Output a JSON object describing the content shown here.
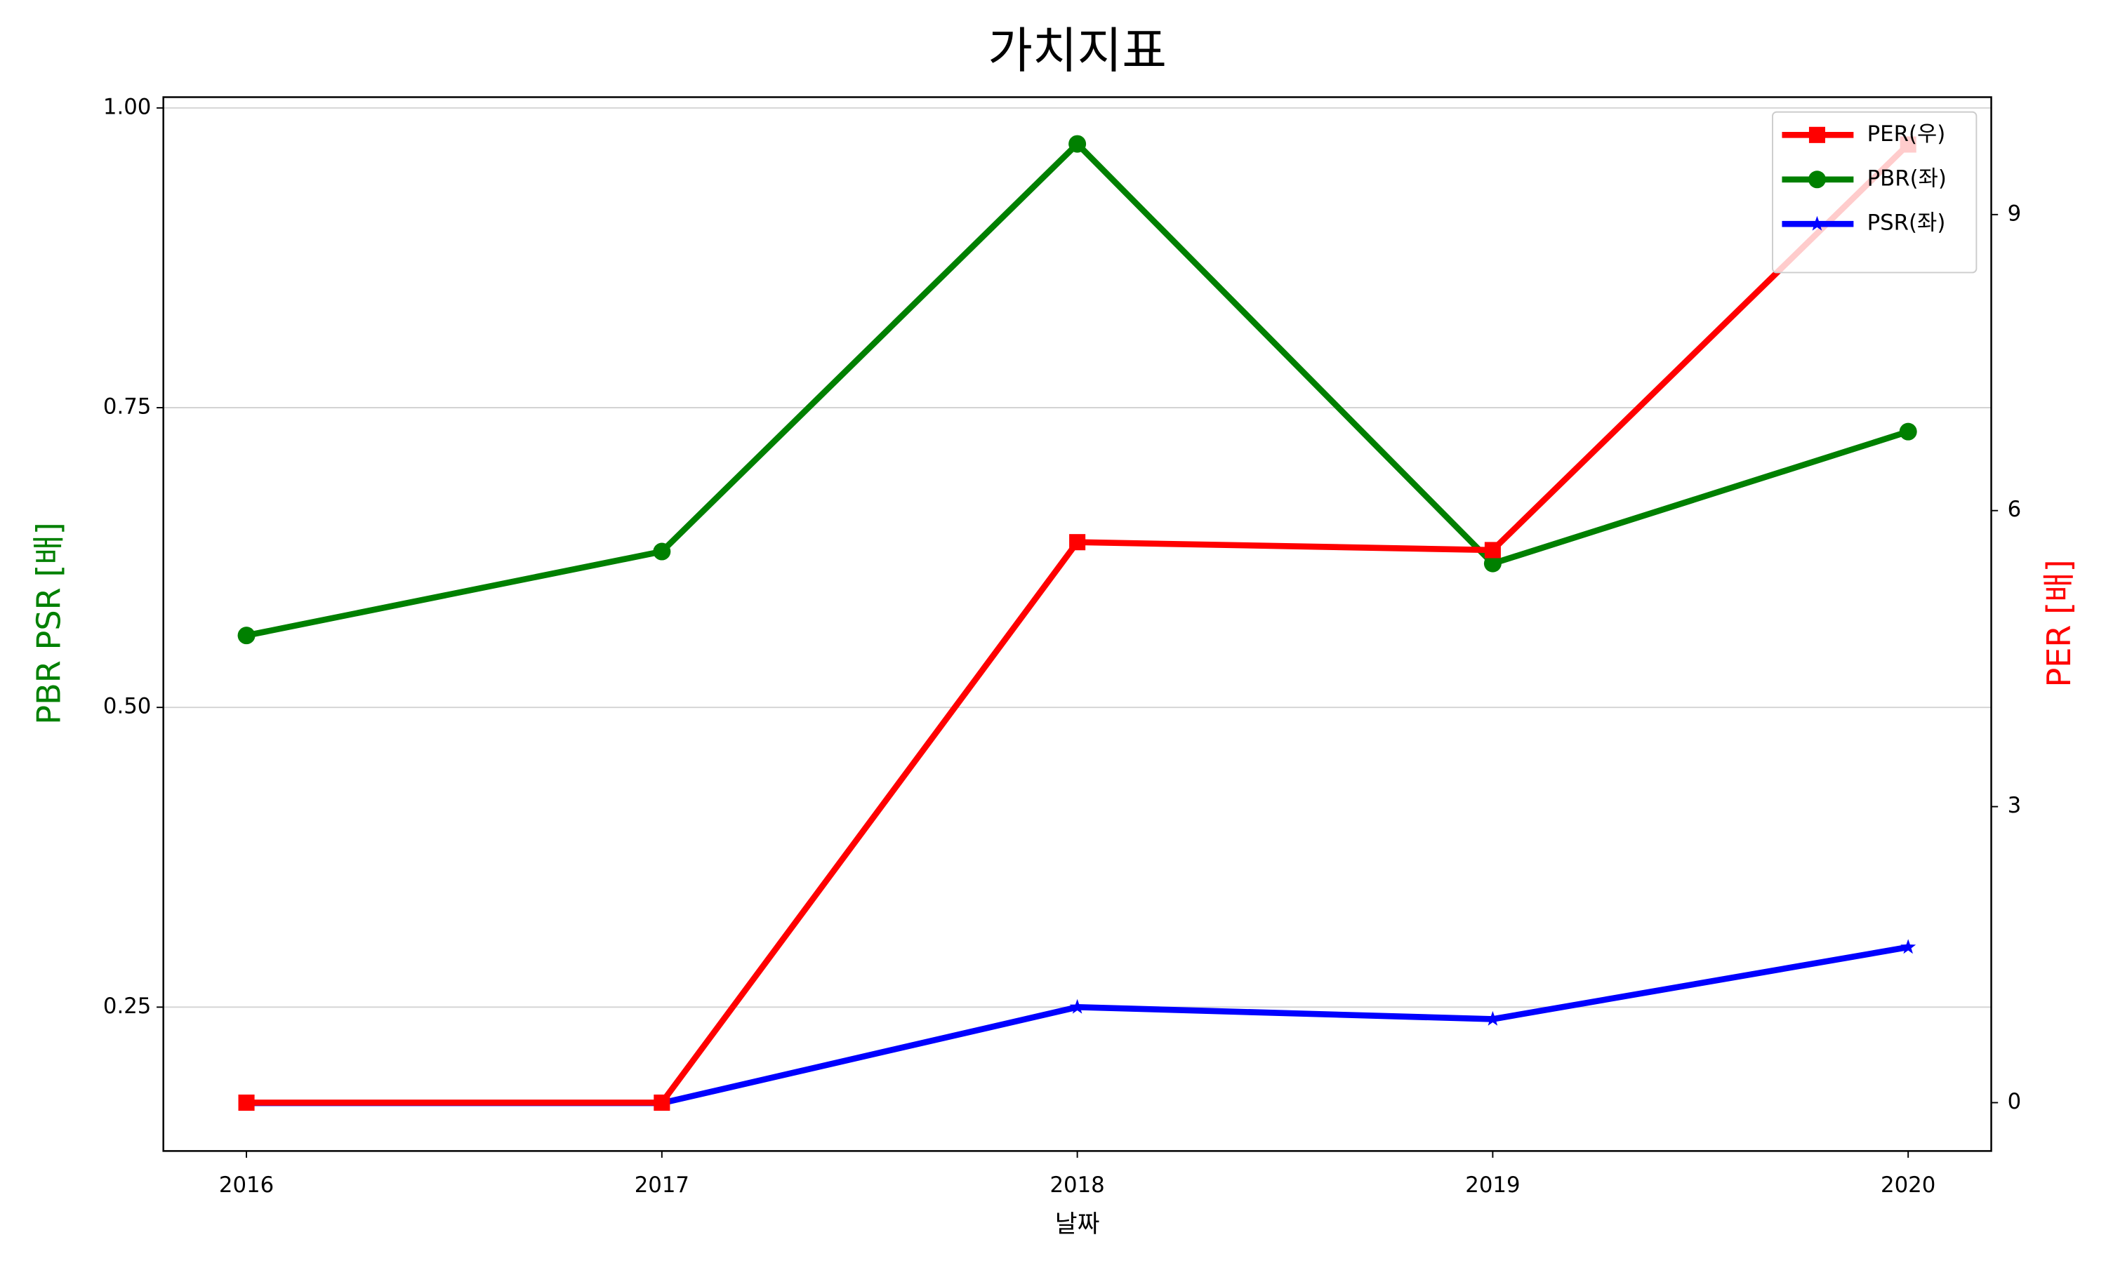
{
  "chart_data": {
    "type": "line",
    "title": "가치지표",
    "xlabel": "날짜",
    "ylabel": "PBR PSR [배]",
    "ylabel_color": "green",
    "y2label": "PER [배]",
    "y2label_color": "red",
    "x": [
      2016,
      2017,
      2018,
      2019,
      2020
    ],
    "xlim": [
      2015.8,
      2020.2
    ],
    "xticks": [
      2016,
      2017,
      2018,
      2019,
      2020
    ],
    "ylim": [
      0.13,
      1.009
    ],
    "yticks": [
      {
        "value": 0.25,
        "label": "0.25"
      },
      {
        "value": 0.5,
        "label": "0.50"
      },
      {
        "value": 0.75,
        "label": "0.75"
      },
      {
        "value": 1.0,
        "label": "1.00"
      }
    ],
    "y2lim": [
      -0.49,
      10.19
    ],
    "y2ticks": [
      0,
      3,
      6,
      9
    ],
    "grid": true,
    "legend": "upper right",
    "series": [
      {
        "name": "PER(우)",
        "color": "#ff0000",
        "marker": "square",
        "axis": "y2",
        "values": [
          0,
          0,
          5.68,
          5.6,
          9.71
        ]
      },
      {
        "name": "PBR(좌)",
        "color": "#008000",
        "marker": "circle",
        "values": [
          0.56,
          0.63,
          0.97,
          0.62,
          0.73
        ]
      },
      {
        "name": "PSR(좌)",
        "color": "#0000ff",
        "marker": "star",
        "values": [
          0.17,
          0.17,
          0.25,
          0.24,
          0.3
        ]
      }
    ]
  }
}
